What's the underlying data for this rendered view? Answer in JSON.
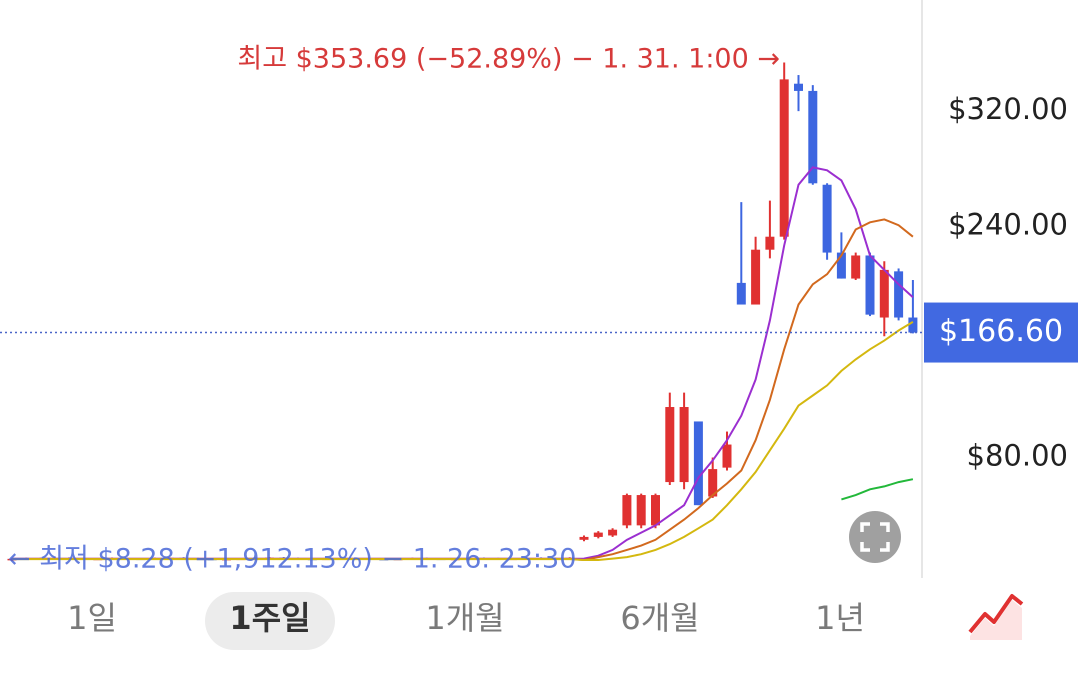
{
  "chart_data": {
    "type": "candlestick",
    "up_color": "#e03131",
    "down_color": "#3d66e0",
    "ylim": [
      0,
      397
    ],
    "yticks": [
      {
        "value": 320,
        "label": "$320.00"
      },
      {
        "value": 240,
        "label": "$240.00"
      },
      {
        "value": 80,
        "label": "$80.00"
      }
    ],
    "current_price": {
      "value": 166.6,
      "label": "$166.60"
    },
    "high_annotation": "최고 $353.69 (−52.89%) − 1. 31. 1:00 →",
    "low_annotation": "← 최저 $8.28 (+1,912.13%) − 1. 26. 23:30",
    "open": [
      9.6,
      9.8,
      10.2,
      9.9,
      10.4,
      10.1,
      9.7,
      9.9,
      10.3,
      10.0,
      9.8,
      10.2,
      10.5,
      10.1,
      9.9,
      9.6,
      9.8,
      10.0,
      10.3,
      10.6,
      10.2,
      9.9,
      9.7,
      10.0,
      10.4,
      10.1,
      9.8,
      9.6,
      9.9,
      10.2,
      10.0,
      9.7,
      9.9,
      10.3,
      10.1,
      9.8,
      10.0,
      10.4,
      10.2,
      9.9,
      23,
      25,
      26,
      33,
      33,
      33,
      63,
      63,
      105,
      53,
      73,
      201,
      186,
      224,
      233,
      339,
      334,
      269,
      222,
      204,
      220,
      177,
      209,
      177
    ],
    "high": [
      10.2,
      10.6,
      10.6,
      10.8,
      10.8,
      10.5,
      10.3,
      10.7,
      10.7,
      10.4,
      10.6,
      10.9,
      10.9,
      10.5,
      10.3,
      10.2,
      10.4,
      10.7,
      11.0,
      11.0,
      10.6,
      10.3,
      10.4,
      10.8,
      10.8,
      10.5,
      10.2,
      10.3,
      10.6,
      10.6,
      10.4,
      10.3,
      10.7,
      10.7,
      10.5,
      10.4,
      10.8,
      10.8,
      10.6,
      10.9,
      26,
      29,
      31,
      55,
      55,
      55,
      125,
      125,
      105,
      80,
      98,
      257,
      233,
      258,
      353.69,
      345,
      338,
      270,
      236,
      222,
      222,
      216,
      211,
      203
    ],
    "low": [
      8.28,
      9.4,
      9.5,
      9.5,
      9.7,
      9.3,
      9.3,
      9.5,
      9.6,
      9.4,
      9.4,
      9.8,
      9.7,
      9.5,
      9.2,
      9.2,
      9.4,
      9.6,
      9.9,
      9.8,
      9.5,
      9.3,
      9.3,
      9.6,
      9.7,
      9.4,
      9.2,
      9.2,
      9.5,
      9.6,
      9.3,
      9.3,
      9.5,
      9.7,
      9.4,
      9.4,
      9.6,
      9.8,
      9.5,
      9.5,
      22,
      24,
      25,
      31,
      31,
      31,
      61,
      58,
      47,
      52,
      71,
      186,
      186,
      218,
      231,
      320,
      269,
      217,
      204,
      203,
      178,
      164,
      175,
      166
    ],
    "close": [
      9.8,
      10.2,
      9.9,
      10.4,
      10.1,
      9.7,
      9.9,
      10.3,
      10.0,
      9.8,
      10.2,
      10.5,
      10.1,
      9.9,
      9.6,
      9.8,
      10.0,
      10.3,
      10.6,
      10.2,
      9.9,
      9.7,
      10.0,
      10.4,
      10.1,
      9.8,
      9.6,
      9.9,
      10.2,
      10.0,
      9.7,
      9.9,
      10.3,
      10.1,
      9.8,
      10.0,
      10.4,
      10.2,
      9.9,
      10.5,
      25,
      28,
      30,
      54,
      54,
      54,
      115,
      115,
      47,
      72,
      89,
      186,
      224,
      233,
      342,
      334,
      270,
      222,
      204,
      220,
      179,
      210,
      177,
      166.6
    ],
    "lines": [
      {
        "color": "#9b2fd0",
        "values": [
          9.9,
          9.9,
          9.9,
          9.9,
          9.9,
          9.9,
          9.9,
          9.9,
          9.9,
          9.9,
          9.9,
          9.9,
          9.9,
          9.9,
          9.9,
          9.9,
          9.9,
          9.9,
          9.9,
          9.9,
          9.9,
          9.9,
          9.9,
          9.9,
          9.9,
          9.9,
          9.9,
          9.9,
          9.9,
          9.9,
          9.9,
          9.9,
          9.9,
          9.9,
          9.9,
          9.9,
          9.9,
          9.9,
          9.9,
          9.9,
          10,
          12,
          16,
          23,
          28,
          33,
          40,
          47,
          66,
          78,
          92,
          109,
          134,
          175,
          227,
          269,
          281,
          279,
          272,
          252,
          220,
          210,
          200,
          191
        ]
      },
      {
        "color": "#d2691e",
        "values": [
          9.8,
          9.8,
          9.8,
          9.8,
          9.8,
          9.8,
          9.8,
          9.8,
          9.8,
          9.8,
          9.8,
          9.8,
          9.8,
          9.8,
          9.8,
          9.8,
          9.8,
          9.8,
          9.8,
          9.8,
          9.8,
          9.8,
          9.8,
          9.8,
          9.8,
          9.8,
          9.8,
          9.8,
          9.8,
          9.8,
          9.8,
          9.8,
          9.8,
          9.8,
          9.8,
          9.8,
          9.8,
          9.8,
          9.8,
          9.8,
          9,
          11,
          13,
          16,
          19,
          23,
          30,
          37,
          45,
          54,
          62,
          71,
          92,
          120,
          155,
          186,
          200,
          207,
          220,
          238,
          243,
          245,
          241,
          233
        ]
      },
      {
        "color": "#d4b80f",
        "values": [
          9.6,
          9.6,
          9.6,
          9.6,
          9.6,
          9.6,
          9.6,
          9.6,
          9.6,
          9.6,
          9.6,
          9.6,
          9.6,
          9.6,
          9.6,
          9.6,
          9.6,
          9.6,
          9.6,
          9.6,
          9.6,
          9.6,
          9.6,
          9.6,
          9.6,
          9.6,
          9.6,
          9.6,
          9.6,
          9.6,
          9.6,
          9.6,
          9.6,
          9.6,
          9.6,
          9.6,
          9.6,
          9.6,
          9.6,
          9.6,
          9,
          9,
          10,
          11,
          13,
          16,
          20,
          25,
          31,
          37,
          47,
          58,
          70,
          85,
          100,
          116,
          123,
          130,
          140,
          148,
          155,
          161,
          168,
          174
        ]
      },
      {
        "color": "#22b83a",
        "values": [
          null,
          null,
          null,
          null,
          null,
          null,
          null,
          null,
          null,
          null,
          null,
          null,
          null,
          null,
          null,
          null,
          null,
          null,
          null,
          null,
          null,
          null,
          null,
          null,
          null,
          null,
          null,
          null,
          null,
          null,
          null,
          null,
          null,
          null,
          null,
          null,
          null,
          null,
          null,
          null,
          null,
          null,
          null,
          null,
          null,
          null,
          null,
          null,
          null,
          null,
          null,
          null,
          null,
          null,
          null,
          null,
          null,
          null,
          51,
          54,
          58,
          60,
          63,
          65
        ]
      }
    ]
  },
  "tabs": [
    "1일",
    "1주일",
    "1개월",
    "6개월",
    "1년"
  ],
  "selected_tab": 1
}
